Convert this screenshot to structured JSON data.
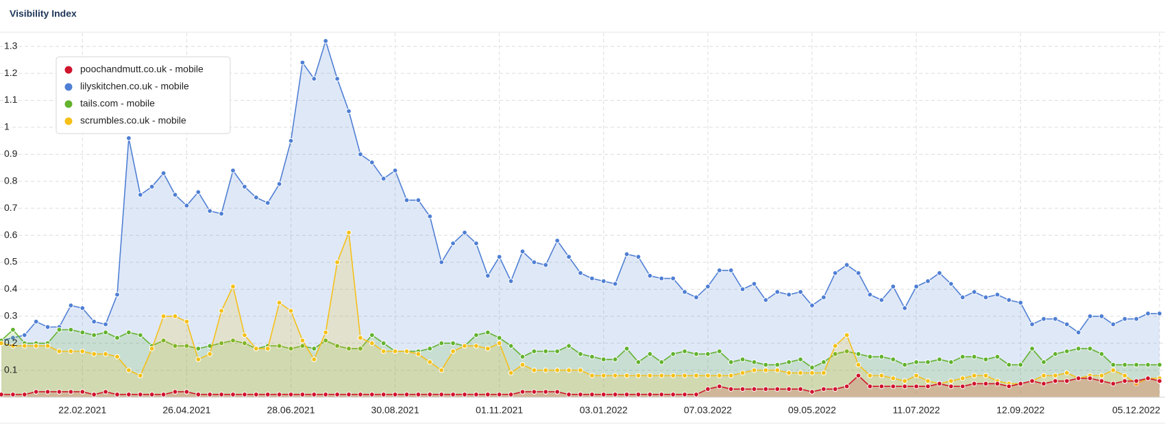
{
  "chart_data": {
    "type": "area",
    "title": "Visibility Index",
    "legend": "upper left",
    "grid": true,
    "categories": [
      null,
      null,
      null,
      null,
      null,
      null,
      null,
      "22.02.2021",
      null,
      null,
      null,
      null,
      null,
      null,
      null,
      null,
      "26.04.2021",
      null,
      null,
      null,
      null,
      null,
      null,
      null,
      null,
      "28.06.2021",
      null,
      null,
      null,
      null,
      null,
      null,
      null,
      null,
      "30.08.2021",
      null,
      null,
      null,
      null,
      null,
      null,
      null,
      null,
      "01.11.2021",
      null,
      null,
      null,
      null,
      null,
      null,
      null,
      null,
      "03.01.2022",
      null,
      null,
      null,
      null,
      null,
      null,
      null,
      null,
      "07.03.2022",
      null,
      null,
      null,
      null,
      null,
      null,
      null,
      null,
      "09.05.2022",
      null,
      null,
      null,
      null,
      null,
      null,
      null,
      null,
      "11.07.2022",
      null,
      null,
      null,
      null,
      null,
      null,
      null,
      null,
      "12.09.2022",
      null,
      null,
      null,
      null,
      null,
      null,
      null,
      null,
      null,
      null,
      null,
      "05.12.2022"
    ],
    "ylim": [
      0,
      1.35
    ],
    "yticks": [
      0.1,
      0.2,
      0.3,
      0.4,
      0.5,
      0.6,
      0.7,
      0.8,
      0.9,
      1,
      1.1,
      1.2,
      1.3
    ],
    "series": [
      {
        "name": "poochandmutt.co.uk - mobile",
        "color": "#d0142c",
        "values": [
          0.01,
          0.01,
          0.01,
          0.02,
          0.02,
          0.02,
          0.02,
          0.02,
          0.01,
          0.02,
          0.01,
          0.01,
          0.01,
          0.01,
          0.01,
          0.02,
          0.02,
          0.01,
          0.01,
          0.01,
          0.01,
          0.01,
          0.01,
          0.01,
          0.01,
          0.01,
          0.01,
          0.01,
          0.01,
          0.01,
          0.01,
          0.01,
          0.01,
          0.01,
          0.01,
          0.01,
          0.01,
          0.01,
          0.01,
          0.01,
          0.01,
          0.01,
          0.01,
          0.01,
          0.01,
          0.02,
          0.02,
          0.02,
          0.02,
          0.01,
          0.01,
          0.01,
          0.01,
          0.01,
          0.01,
          0.01,
          0.01,
          0.01,
          0.01,
          0.01,
          0.01,
          0.03,
          0.04,
          0.03,
          0.03,
          0.03,
          0.03,
          0.03,
          0.03,
          0.03,
          0.02,
          0.03,
          0.03,
          0.04,
          0.08,
          0.04,
          0.04,
          0.04,
          0.04,
          0.04,
          0.04,
          0.05,
          0.04,
          0.04,
          0.05,
          0.05,
          0.05,
          0.04,
          0.05,
          0.06,
          0.05,
          0.06,
          0.06,
          0.07,
          0.07,
          0.06,
          0.05,
          0.06,
          0.06,
          0.07,
          0.06
        ]
      },
      {
        "name": "lilyskitchen.co.uk - mobile",
        "color": "#4f7fd4",
        "values": [
          0.21,
          0.22,
          0.23,
          0.28,
          0.26,
          0.26,
          0.34,
          0.33,
          0.28,
          0.27,
          0.38,
          0.96,
          0.75,
          0.78,
          0.83,
          0.75,
          0.71,
          0.76,
          0.69,
          0.68,
          0.84,
          0.78,
          0.74,
          0.72,
          0.79,
          0.95,
          1.24,
          1.18,
          1.32,
          1.18,
          1.06,
          0.9,
          0.87,
          0.81,
          0.84,
          0.73,
          0.73,
          0.67,
          0.5,
          0.57,
          0.61,
          0.57,
          0.45,
          0.52,
          0.43,
          0.54,
          0.5,
          0.49,
          0.58,
          0.52,
          0.46,
          0.44,
          0.43,
          0.42,
          0.53,
          0.52,
          0.45,
          0.44,
          0.44,
          0.39,
          0.37,
          0.41,
          0.47,
          0.47,
          0.4,
          0.42,
          0.36,
          0.39,
          0.38,
          0.39,
          0.34,
          0.37,
          0.46,
          0.49,
          0.46,
          0.38,
          0.36,
          0.41,
          0.33,
          0.41,
          0.43,
          0.46,
          0.42,
          0.37,
          0.39,
          0.37,
          0.38,
          0.36,
          0.35,
          0.27,
          0.29,
          0.29,
          0.27,
          0.24,
          0.3,
          0.3,
          0.27,
          0.29,
          0.29,
          0.31,
          0.31
        ]
      },
      {
        "name": "tails.com - mobile",
        "color": "#62b22f",
        "values": [
          0.21,
          0.25,
          0.2,
          0.2,
          0.2,
          0.25,
          0.25,
          0.24,
          0.23,
          0.24,
          0.22,
          0.24,
          0.23,
          0.19,
          0.21,
          0.19,
          0.19,
          0.18,
          0.19,
          0.2,
          0.21,
          0.2,
          0.18,
          0.19,
          0.19,
          0.18,
          0.19,
          0.18,
          0.21,
          0.19,
          0.18,
          0.18,
          0.23,
          0.2,
          0.17,
          0.17,
          0.17,
          0.18,
          0.2,
          0.2,
          0.19,
          0.23,
          0.24,
          0.22,
          0.19,
          0.15,
          0.17,
          0.17,
          0.17,
          0.19,
          0.16,
          0.15,
          0.14,
          0.14,
          0.18,
          0.13,
          0.16,
          0.13,
          0.16,
          0.17,
          0.16,
          0.16,
          0.17,
          0.13,
          0.14,
          0.13,
          0.12,
          0.12,
          0.13,
          0.14,
          0.11,
          0.13,
          0.16,
          0.17,
          0.16,
          0.15,
          0.15,
          0.14,
          0.12,
          0.13,
          0.13,
          0.14,
          0.13,
          0.15,
          0.15,
          0.14,
          0.15,
          0.12,
          0.12,
          0.18,
          0.13,
          0.16,
          0.17,
          0.18,
          0.18,
          0.16,
          0.12,
          0.12,
          0.12,
          0.12,
          0.12
        ]
      },
      {
        "name": "scrumbles.co.uk - mobile",
        "color": "#f5c018",
        "values": [
          0.2,
          0.19,
          0.19,
          0.19,
          0.19,
          0.17,
          0.17,
          0.17,
          0.16,
          0.16,
          0.15,
          0.1,
          0.08,
          0.18,
          0.3,
          0.3,
          0.28,
          0.14,
          0.16,
          0.32,
          0.41,
          0.23,
          0.18,
          0.18,
          0.35,
          0.32,
          0.21,
          0.14,
          0.24,
          0.5,
          0.61,
          0.22,
          0.2,
          0.17,
          0.17,
          0.17,
          0.16,
          0.13,
          0.1,
          0.17,
          0.19,
          0.19,
          0.18,
          0.2,
          0.09,
          0.12,
          0.1,
          0.1,
          0.1,
          0.1,
          0.1,
          0.08,
          0.08,
          0.08,
          0.08,
          0.08,
          0.08,
          0.08,
          0.08,
          0.08,
          0.08,
          0.08,
          0.08,
          0.08,
          0.09,
          0.1,
          0.1,
          0.1,
          0.09,
          0.09,
          0.09,
          0.09,
          0.19,
          0.23,
          0.12,
          0.08,
          0.08,
          0.07,
          0.06,
          0.08,
          0.06,
          0.05,
          0.06,
          0.07,
          0.08,
          0.08,
          0.06,
          0.05,
          0.05,
          0.06,
          0.08,
          0.08,
          0.09,
          0.07,
          0.08,
          0.08,
          0.1,
          0.08,
          0.05,
          0.07,
          0.07
        ]
      }
    ]
  }
}
